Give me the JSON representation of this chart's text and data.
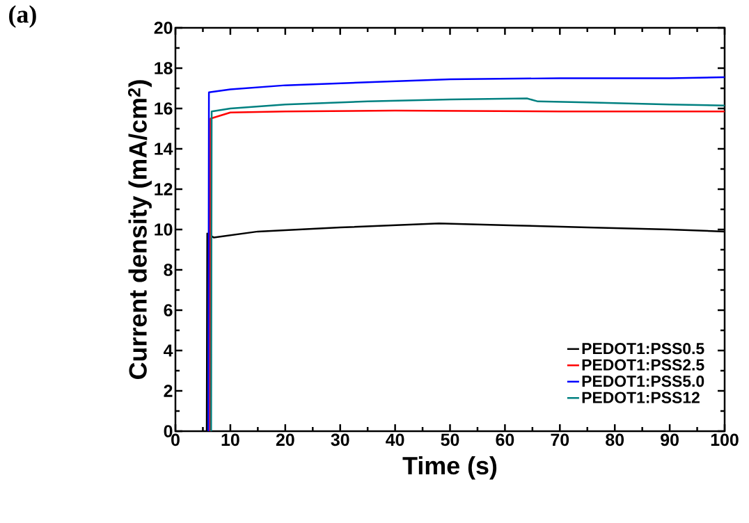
{
  "chart_data": {
    "type": "line",
    "xlabel": "Time (s)",
    "ylabel": "Current density (mA/cm$^{2}$)",
    "annotations": [
      "(a)"
    ],
    "xlim": [
      0,
      100
    ],
    "ylim": [
      0,
      20
    ],
    "xticks": [
      0,
      10,
      20,
      30,
      40,
      50,
      60,
      70,
      80,
      90,
      100
    ],
    "yticks": [
      0,
      2,
      4,
      6,
      8,
      10,
      12,
      14,
      16,
      18,
      20
    ],
    "legend": "bottom right",
    "grid": false,
    "marker": "none",
    "line_style": "solid",
    "series": [
      {
        "name": "PEDOT1:PSS0.5",
        "color": "#000000",
        "x": [
          5.7,
          5.8,
          7,
          15,
          30,
          48,
          62,
          75,
          90,
          100
        ],
        "values": [
          0,
          9.8,
          9.6,
          9.9,
          10.1,
          10.3,
          10.2,
          10.1,
          10.0,
          9.9
        ]
      },
      {
        "name": "PEDOT1:PSS2.5",
        "color": "#ff0000",
        "x": [
          6.3,
          6.4,
          10,
          20,
          40,
          70,
          100
        ],
        "values": [
          0,
          15.5,
          15.8,
          15.85,
          15.9,
          15.85,
          15.85
        ]
      },
      {
        "name": "PEDOT1:PSS5.0",
        "color": "#0000ff",
        "x": [
          6.0,
          6.1,
          10,
          20,
          35,
          50,
          70,
          90,
          100
        ],
        "values": [
          0,
          16.8,
          16.95,
          17.15,
          17.3,
          17.45,
          17.5,
          17.5,
          17.55
        ]
      },
      {
        "name": "PEDOT1:PSS12",
        "color": "#008080",
        "x": [
          6.5,
          6.6,
          10,
          20,
          35,
          50,
          64,
          66,
          75,
          90,
          100
        ],
        "values": [
          0,
          15.85,
          16.0,
          16.2,
          16.35,
          16.45,
          16.5,
          16.35,
          16.3,
          16.2,
          16.15
        ]
      }
    ]
  }
}
